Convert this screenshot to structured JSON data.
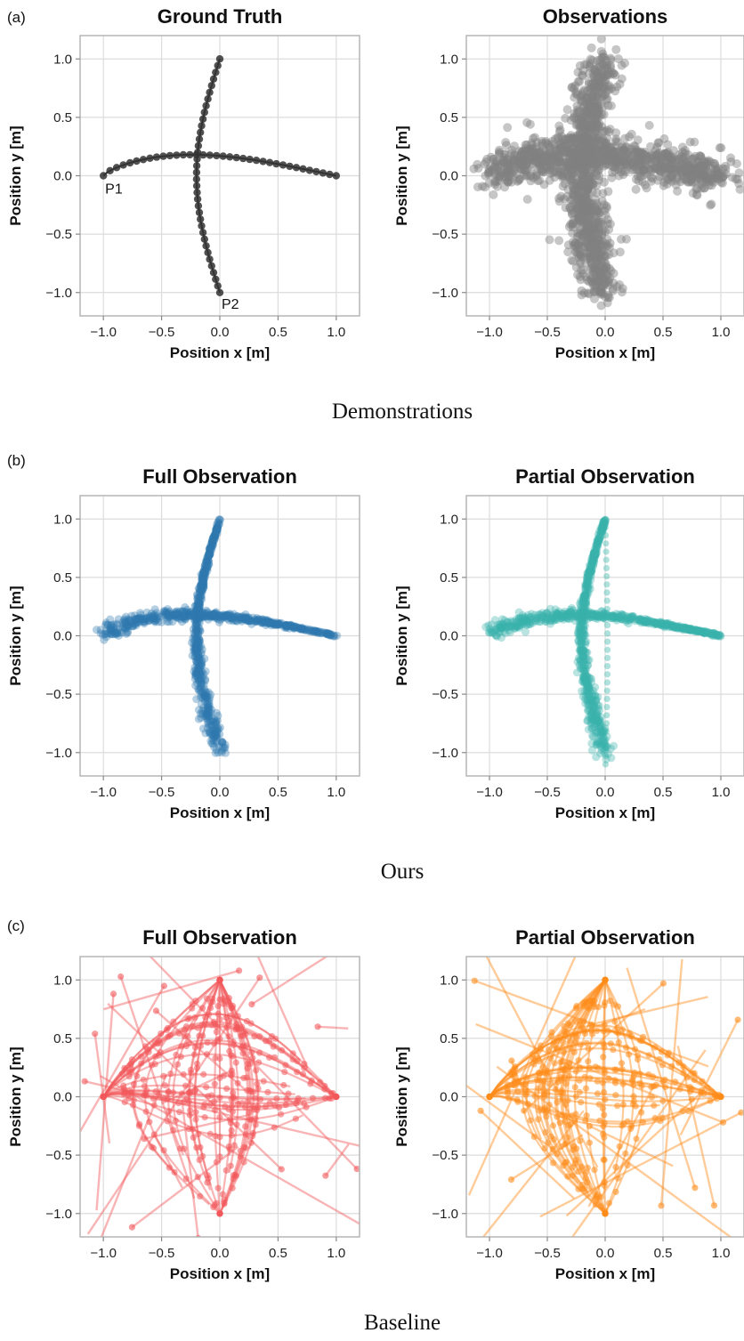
{
  "sections": [
    {
      "letter": "(a)",
      "caption": "Demonstrations"
    },
    {
      "letter": "(b)",
      "caption": "Ours"
    },
    {
      "letter": "(c)",
      "caption": "Baseline"
    }
  ],
  "chart_data": [
    {
      "type": "scatter",
      "title": "Ground Truth",
      "xlabel": "Position x [m]",
      "ylabel": "Position y [m]",
      "xlim": [
        -1.2,
        1.2
      ],
      "ylim": [
        -1.2,
        1.2
      ],
      "xticks": [
        "−1.0",
        "−0.5",
        "0.0",
        "0.5",
        "1.0"
      ],
      "yticks": [
        "−1.0",
        "−0.5",
        "0.0",
        "0.5",
        "1.0"
      ],
      "grid": true,
      "color": "#333333",
      "style": "ground_truth",
      "annotations": [
        {
          "text": "P1",
          "x": -1.0,
          "y": 0.0
        },
        {
          "text": "P2",
          "x": 0.0,
          "y": -1.0
        }
      ]
    },
    {
      "type": "scatter",
      "title": "Observations",
      "xlabel": "Position x [m]",
      "ylabel": "Position y [m]",
      "xlim": [
        -1.2,
        1.2
      ],
      "ylim": [
        -1.2,
        1.2
      ],
      "xticks": [
        "−1.0",
        "−0.5",
        "0.0",
        "0.5",
        "1.0"
      ],
      "yticks": [
        "−1.0",
        "−0.5",
        "0.0",
        "0.5",
        "1.0"
      ],
      "grid": true,
      "color": "#808080",
      "style": "observations"
    },
    {
      "type": "scatter",
      "title": "Full Observation",
      "xlabel": "Position x [m]",
      "ylabel": "Position y [m]",
      "xlim": [
        -1.2,
        1.2
      ],
      "ylim": [
        -1.2,
        1.2
      ],
      "xticks": [
        "−1.0",
        "−0.5",
        "0.0",
        "0.5",
        "1.0"
      ],
      "yticks": [
        "−1.0",
        "−0.5",
        "0.0",
        "0.5",
        "1.0"
      ],
      "grid": true,
      "color": "#2f78b0",
      "style": "ours"
    },
    {
      "type": "scatter",
      "title": "Partial Observation",
      "xlabel": "Position x [m]",
      "ylabel": "Position y [m]",
      "xlim": [
        -1.2,
        1.2
      ],
      "ylim": [
        -1.2,
        1.2
      ],
      "xticks": [
        "−1.0",
        "−0.5",
        "0.0",
        "0.5",
        "1.0"
      ],
      "yticks": [
        "−1.0",
        "−0.5",
        "0.0",
        "0.5",
        "1.0"
      ],
      "grid": true,
      "color": "#38b3ab",
      "style": "ours"
    },
    {
      "type": "line",
      "title": "Full Observation",
      "xlabel": "Position x [m]",
      "ylabel": "Position y [m]",
      "xlim": [
        -1.2,
        1.2
      ],
      "ylim": [
        -1.2,
        1.2
      ],
      "xticks": [
        "−1.0",
        "−0.5",
        "0.0",
        "0.5",
        "1.0"
      ],
      "yticks": [
        "−1.0",
        "−0.5",
        "0.0",
        "0.5",
        "1.0"
      ],
      "grid": true,
      "color": "#f2585b",
      "style": "baseline"
    },
    {
      "type": "line",
      "title": "Partial Observation",
      "xlabel": "Position x [m]",
      "ylabel": "Position y [m]",
      "xlim": [
        -1.2,
        1.2
      ],
      "ylim": [
        -1.2,
        1.2
      ],
      "xticks": [
        "−1.0",
        "−0.5",
        "0.0",
        "0.5",
        "1.0"
      ],
      "yticks": [
        "−1.0",
        "−0.5",
        "0.0",
        "0.5",
        "1.0"
      ],
      "grid": true,
      "color": "#ff8c1a",
      "style": "baseline"
    }
  ]
}
